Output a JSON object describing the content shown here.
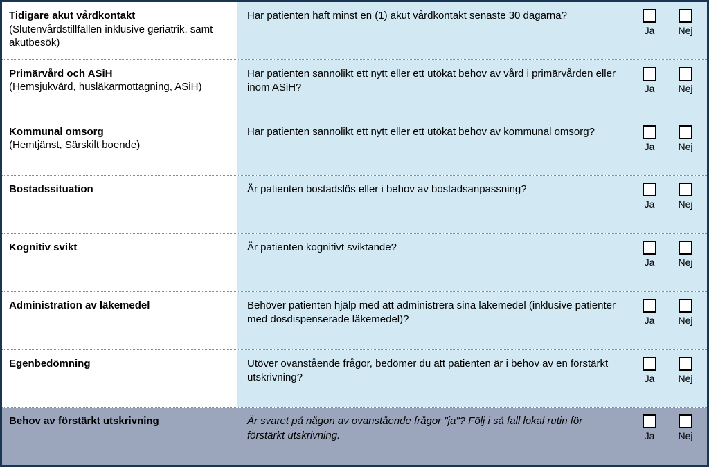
{
  "labels": {
    "yes": "Ja",
    "no": "Nej"
  },
  "rows": [
    {
      "key": "tidigare-akut",
      "title": "Tidigare akut vårdkontakt",
      "subtitle": "(Slutenvårdstillfällen inklusive geriatrik, samt akutbesök)",
      "question": "Har patienten haft minst en (1) akut vårdkontakt senaste 30 dagarna?",
      "variant": "blue",
      "italic": false
    },
    {
      "key": "primarvard-asih",
      "title": "Primärvård och ASiH",
      "subtitle": "(Hemsjukvård, husläkarmottagning, ASiH)",
      "question": "Har patienten sannolikt ett nytt eller ett utökat behov av vård i primärvården eller inom ASiH?",
      "variant": "blue",
      "italic": false
    },
    {
      "key": "kommunal-omsorg",
      "title": "Kommunal omsorg",
      "subtitle": "(Hemtjänst, Särskilt boende)",
      "question": "Har patienten sannolikt ett nytt eller ett utökat behov av kommunal omsorg?",
      "variant": "blue",
      "italic": false
    },
    {
      "key": "bostadssituation",
      "title": "Bostadssituation",
      "subtitle": "",
      "question": "Är patienten bostadslös eller i behov av bostadsanpassning?",
      "variant": "blue",
      "italic": false
    },
    {
      "key": "kognitiv-svikt",
      "title": "Kognitiv svikt",
      "subtitle": "",
      "question": "Är patienten kognitivt sviktande?",
      "variant": "blue",
      "italic": false
    },
    {
      "key": "administration-lakemedel",
      "title": "Administration av läkemedel",
      "subtitle": "",
      "question": "Behöver patienten hjälp med att administrera sina läkemedel (inklusive patienter med dosdispenserade läkemedel)?",
      "variant": "blue",
      "italic": false
    },
    {
      "key": "egenbedomning",
      "title": "Egenbedömning",
      "subtitle": "",
      "question": "Utöver ovanstående frågor, bedömer du att patienten är i behov av en förstärkt utskrivning?",
      "variant": "blue",
      "italic": false
    },
    {
      "key": "behov-forstarkt",
      "title": "Behov av förstärkt utskrivning",
      "subtitle": "",
      "question": "Är svaret på någon av ovanstående frågor \"ja\"? Följ i så fall lokal rutin för förstärkt utskrivning.",
      "variant": "gray",
      "italic": true
    }
  ]
}
